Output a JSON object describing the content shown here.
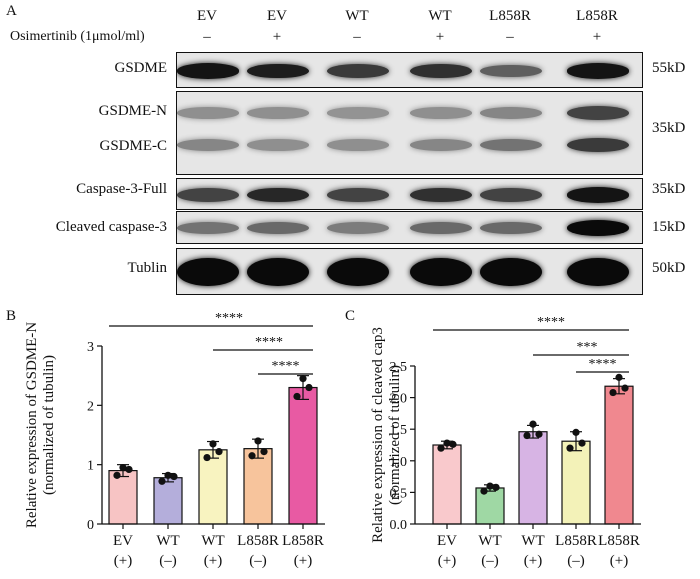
{
  "panel_letters": {
    "a": "A",
    "b": "B",
    "c": "C"
  },
  "western_blot": {
    "treatment_label": "Osimertinib (1μmol/ml)",
    "lanes": [
      {
        "group": "EV",
        "treatment": "–"
      },
      {
        "group": "EV",
        "treatment": "+"
      },
      {
        "group": "WT",
        "treatment": "–"
      },
      {
        "group": "WT",
        "treatment": "+"
      },
      {
        "group": "L858R",
        "treatment": "–"
      },
      {
        "group": "L858R",
        "treatment": "+"
      }
    ],
    "rows": [
      {
        "label": "GSDME",
        "kd": "55kD",
        "intensity": [
          0.95,
          0.9,
          0.75,
          0.8,
          0.55,
          0.95
        ]
      },
      {
        "label": "GSDME-N",
        "kd": "",
        "intensity": [
          0.3,
          0.3,
          0.28,
          0.3,
          0.35,
          0.7
        ]
      },
      {
        "label": "GSDME-C",
        "kd": "35kD",
        "intensity": [
          0.35,
          0.3,
          0.3,
          0.35,
          0.45,
          0.75
        ]
      },
      {
        "label": "Caspase-3-Full",
        "kd": "35kD",
        "intensity": [
          0.7,
          0.85,
          0.7,
          0.8,
          0.7,
          0.95
        ]
      },
      {
        "label": "Cleaved caspase-3",
        "kd": "15kD",
        "intensity": [
          0.45,
          0.5,
          0.4,
          0.5,
          0.5,
          1.0
        ]
      },
      {
        "label": "Tublin",
        "kd": "50kD",
        "intensity": [
          1.0,
          1.0,
          1.0,
          1.0,
          1.0,
          1.0
        ]
      }
    ]
  },
  "chart_data": [
    {
      "type": "bar",
      "panel": "B",
      "ylabel": "Relative expression of GSDME-N",
      "ylabel2": "(normalized of tubulin)",
      "ylim": [
        0,
        3
      ],
      "yticks": [
        "0",
        "1",
        "2",
        "3"
      ],
      "categories": [
        "EV",
        "WT",
        "WT",
        "L858R",
        "L858R"
      ],
      "treatments": [
        "(+)",
        "(–)",
        "(+)",
        "(–)",
        "(+)"
      ],
      "values": [
        0.9,
        0.78,
        1.25,
        1.27,
        2.3
      ],
      "errors": [
        0.1,
        0.07,
        0.14,
        0.16,
        0.2
      ],
      "points": [
        [
          0.82,
          0.95,
          0.92
        ],
        [
          0.72,
          0.82,
          0.8
        ],
        [
          1.12,
          1.35,
          1.22
        ],
        [
          1.15,
          1.4,
          1.22
        ],
        [
          2.15,
          2.45,
          2.3
        ]
      ],
      "colors": [
        "#f7c4c4",
        "#b4aedb",
        "#f8f3c0",
        "#f7c49c",
        "#e85aa3"
      ],
      "significance": [
        {
          "from": 0,
          "to": 4,
          "label": "****"
        },
        {
          "from": 2,
          "to": 4,
          "label": "****"
        },
        {
          "from": 3,
          "to": 4,
          "label": "****"
        }
      ]
    },
    {
      "type": "bar",
      "panel": "C",
      "ylabel": "Relative expression of cleaved cap3",
      "ylabel2": "(normalized of tubulin)",
      "ylim": [
        0,
        2.5
      ],
      "yticks": [
        "0.0",
        "0.5",
        "1.0",
        "1.5",
        "2.0",
        "2.5"
      ],
      "categories": [
        "EV",
        "WT",
        "WT",
        "L858R",
        "L858R"
      ],
      "treatments": [
        "(+)",
        "(–)",
        "(+)",
        "(–)",
        "(+)"
      ],
      "values": [
        1.25,
        0.57,
        1.46,
        1.31,
        2.18
      ],
      "errors": [
        0.06,
        0.05,
        0.1,
        0.15,
        0.12
      ],
      "points": [
        [
          1.2,
          1.28,
          1.26
        ],
        [
          0.52,
          0.6,
          0.58
        ],
        [
          1.4,
          1.58,
          1.42
        ],
        [
          1.2,
          1.45,
          1.28
        ],
        [
          2.08,
          2.32,
          2.15
        ]
      ],
      "colors": [
        "#f9c9cc",
        "#9fd8a4",
        "#d7b4e4",
        "#f3f2b8",
        "#f0888f"
      ],
      "significance": [
        {
          "from": 0,
          "to": 4,
          "label": "****"
        },
        {
          "from": 2,
          "to": 4,
          "label": "***"
        },
        {
          "from": 3,
          "to": 4,
          "label": "****"
        }
      ]
    }
  ]
}
